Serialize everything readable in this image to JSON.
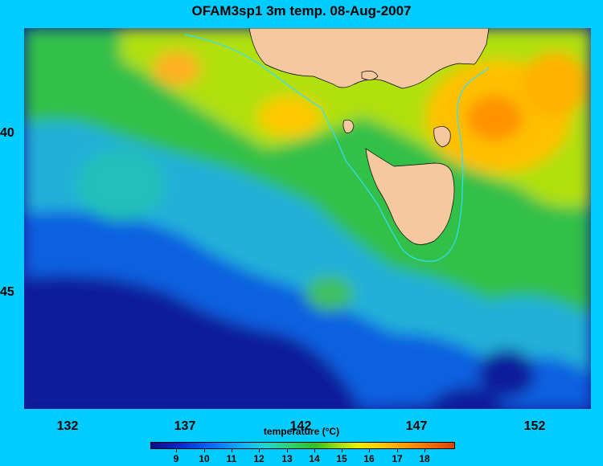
{
  "title": "OFAM3sp1 3m temp. 08-Aug-2007",
  "map": {
    "lat_labels": [
      "40",
      "45"
    ],
    "lon_labels": [
      "132",
      "137",
      "142",
      "147",
      "152"
    ],
    "land_color": "#f5c8a0"
  },
  "colorbar": {
    "title": "temperature (°C)",
    "ticks": [
      "9",
      "10",
      "11",
      "12",
      "13",
      "14",
      "15",
      "16",
      "17",
      "18"
    ],
    "colors": [
      "#0a0a88",
      "#0a2acc",
      "#0a6aff",
      "#10b0ff",
      "#20d8d0",
      "#30d070",
      "#30c020",
      "#a0e010",
      "#e8f000",
      "#ffc800",
      "#ff9000",
      "#e04000"
    ]
  },
  "background_color": "#00ccff"
}
